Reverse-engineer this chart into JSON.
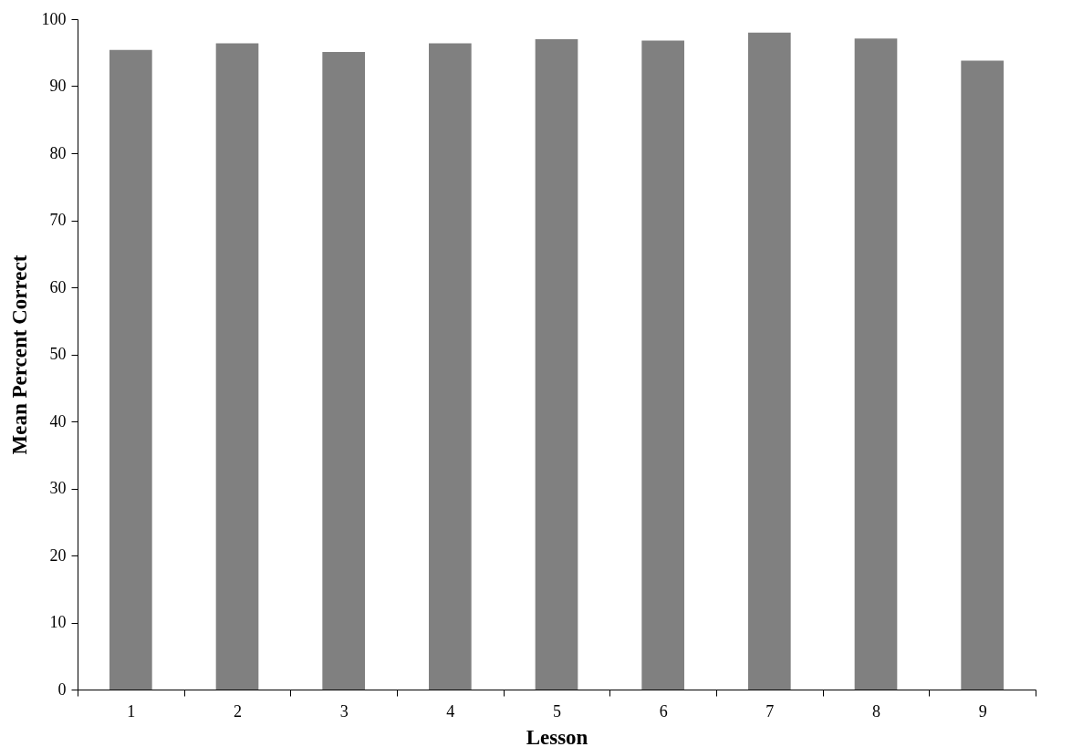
{
  "chart_data": {
    "type": "bar",
    "xlabel": "Lesson",
    "ylabel": "Mean Percent Correct",
    "categories": [
      "1",
      "2",
      "3",
      "4",
      "5",
      "6",
      "7",
      "8",
      "9"
    ],
    "values": [
      95.4,
      96.4,
      95.1,
      96.4,
      97.0,
      96.8,
      98.0,
      97.1,
      93.8
    ],
    "color": "#808080",
    "ylim": [
      0,
      100
    ],
    "yticks": [
      0,
      10,
      20,
      30,
      40,
      50,
      60,
      70,
      80,
      90,
      100
    ],
    "grid": false,
    "legend": false
  }
}
